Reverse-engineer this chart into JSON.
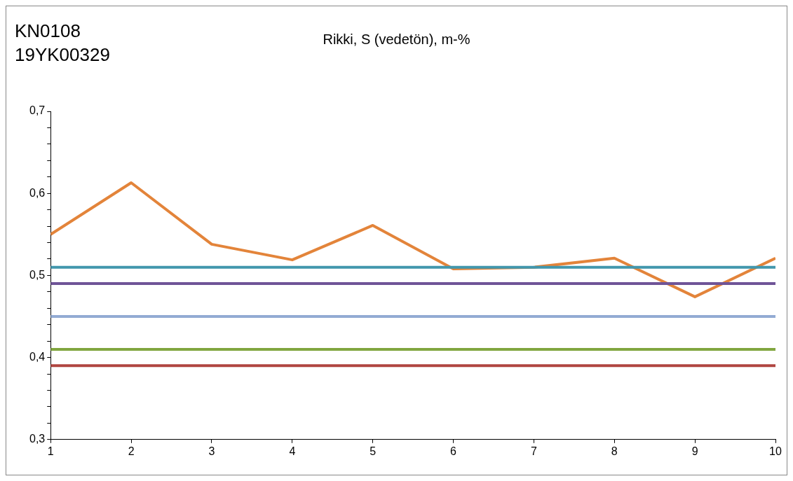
{
  "chart_data": {
    "type": "line",
    "title": "Rikki, S (vedetön), m-%",
    "annotations": [
      "KN0108",
      "19YK00329"
    ],
    "x": [
      1,
      2,
      3,
      4,
      5,
      6,
      7,
      8,
      9,
      10
    ],
    "xlim": [
      1,
      10
    ],
    "xticks": [
      1,
      2,
      3,
      4,
      5,
      6,
      7,
      8,
      9,
      10
    ],
    "ylim": [
      0.3,
      0.7
    ],
    "yticks": [
      {
        "value": 0.3,
        "label": "0,3"
      },
      {
        "value": 0.32,
        "label": null
      },
      {
        "value": 0.34,
        "label": null
      },
      {
        "value": 0.36,
        "label": null
      },
      {
        "value": 0.38,
        "label": null
      },
      {
        "value": 0.4,
        "label": "0,4"
      },
      {
        "value": 0.42,
        "label": null
      },
      {
        "value": 0.44,
        "label": null
      },
      {
        "value": 0.46,
        "label": null
      },
      {
        "value": 0.48,
        "label": null
      },
      {
        "value": 0.5,
        "label": "0,5"
      },
      {
        "value": 0.52,
        "label": null
      },
      {
        "value": 0.54,
        "label": null
      },
      {
        "value": 0.56,
        "label": null
      },
      {
        "value": 0.58,
        "label": null
      },
      {
        "value": 0.6,
        "label": "0,6"
      },
      {
        "value": 0.62,
        "label": null
      },
      {
        "value": 0.64,
        "label": null
      },
      {
        "value": 0.66,
        "label": null
      },
      {
        "value": 0.68,
        "label": null
      },
      {
        "value": 0.7,
        "label": "0,7"
      }
    ],
    "grid": false,
    "legend": false,
    "marker": "none",
    "line_style": "solid",
    "series": [
      {
        "color": "#4297ad",
        "values": [
          0.51,
          0.51,
          0.51,
          0.51,
          0.51,
          0.51,
          0.51,
          0.51,
          0.51,
          0.51
        ]
      },
      {
        "color": "#6f5497",
        "values": [
          0.49,
          0.49,
          0.49,
          0.49,
          0.49,
          0.49,
          0.49,
          0.49,
          0.49,
          0.49
        ]
      },
      {
        "color": "#93abd3",
        "values": [
          0.45,
          0.45,
          0.45,
          0.45,
          0.45,
          0.45,
          0.45,
          0.45,
          0.45,
          0.45
        ]
      },
      {
        "color": "#81a640",
        "values": [
          0.41,
          0.41,
          0.41,
          0.41,
          0.41,
          0.41,
          0.41,
          0.41,
          0.41,
          0.41
        ]
      },
      {
        "color": "#b04540",
        "values": [
          0.39,
          0.39,
          0.39,
          0.39,
          0.39,
          0.39,
          0.39,
          0.39,
          0.39,
          0.39
        ]
      },
      {
        "color": "#e3843a",
        "values": [
          0.55,
          0.613,
          0.538,
          0.519,
          0.561,
          0.508,
          0.51,
          0.521,
          0.474,
          0.521
        ]
      }
    ]
  }
}
